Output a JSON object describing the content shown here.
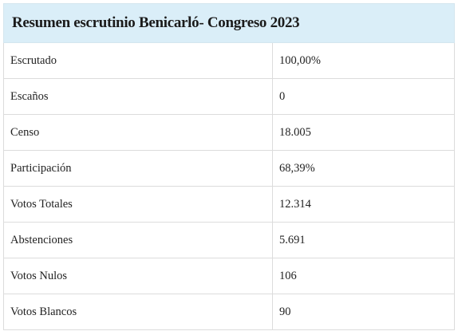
{
  "table": {
    "title": "Resumen escrutinio Benicarló- Congreso 2023",
    "rows": [
      {
        "label": "Escrutado",
        "value": "100,00%"
      },
      {
        "label": "Escaños",
        "value": "0"
      },
      {
        "label": "Censo",
        "value": "18.005"
      },
      {
        "label": "Participación",
        "value": "68,39%"
      },
      {
        "label": "Votos Totales",
        "value": "12.314"
      },
      {
        "label": "Abstenciones",
        "value": "5.691"
      },
      {
        "label": "Votos Nulos",
        "value": "106"
      },
      {
        "label": "Votos Blancos",
        "value": "90"
      }
    ]
  }
}
